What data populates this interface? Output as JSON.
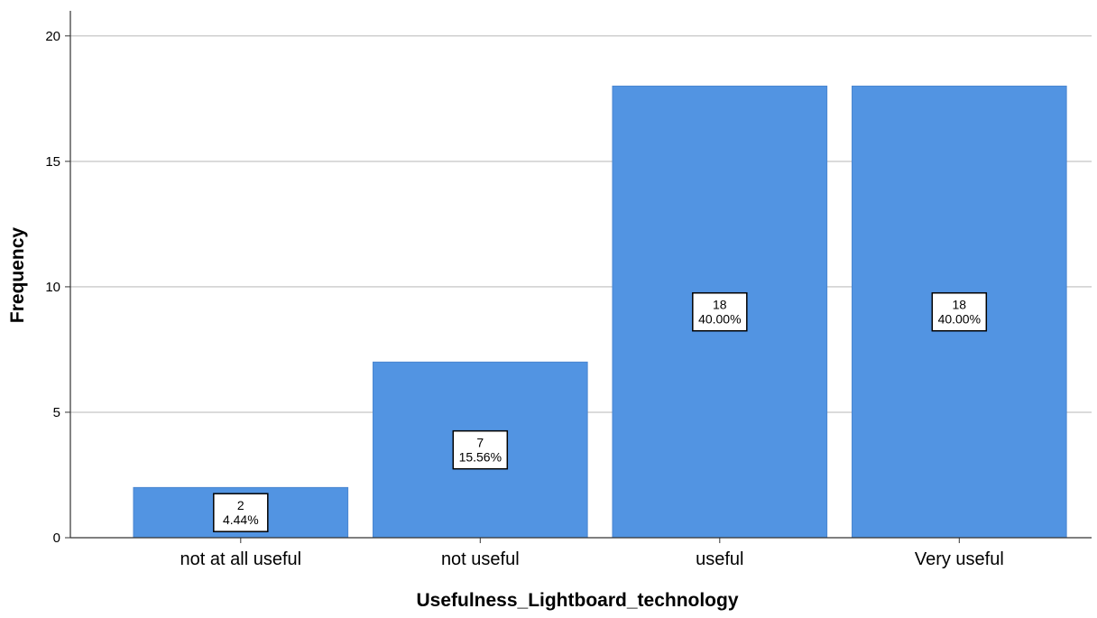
{
  "chart_data": {
    "type": "bar",
    "title": "",
    "xlabel": "Usefulness_Lightboard_technology",
    "ylabel": "Frequency",
    "categories": [
      "not at all useful",
      "not useful",
      "useful",
      "Very useful"
    ],
    "values": [
      2,
      7,
      18,
      18
    ],
    "data_labels": [
      {
        "count": "2",
        "percent": "4.44%"
      },
      {
        "count": "7",
        "percent": "15.56%"
      },
      {
        "count": "18",
        "percent": "40.00%"
      },
      {
        "count": "18",
        "percent": "40.00%"
      }
    ],
    "ylim": [
      0,
      21
    ],
    "yticks": [
      0,
      5,
      10,
      15,
      20
    ],
    "grid": true,
    "legend": "none",
    "colors": {
      "bar": "#5294e2",
      "bar_edge": "#4a86d0",
      "grid": "#cfcfcf",
      "axis": "#333333",
      "text": "#000000",
      "label_box_fill": "#ffffff",
      "label_box_stroke": "#000000"
    }
  }
}
